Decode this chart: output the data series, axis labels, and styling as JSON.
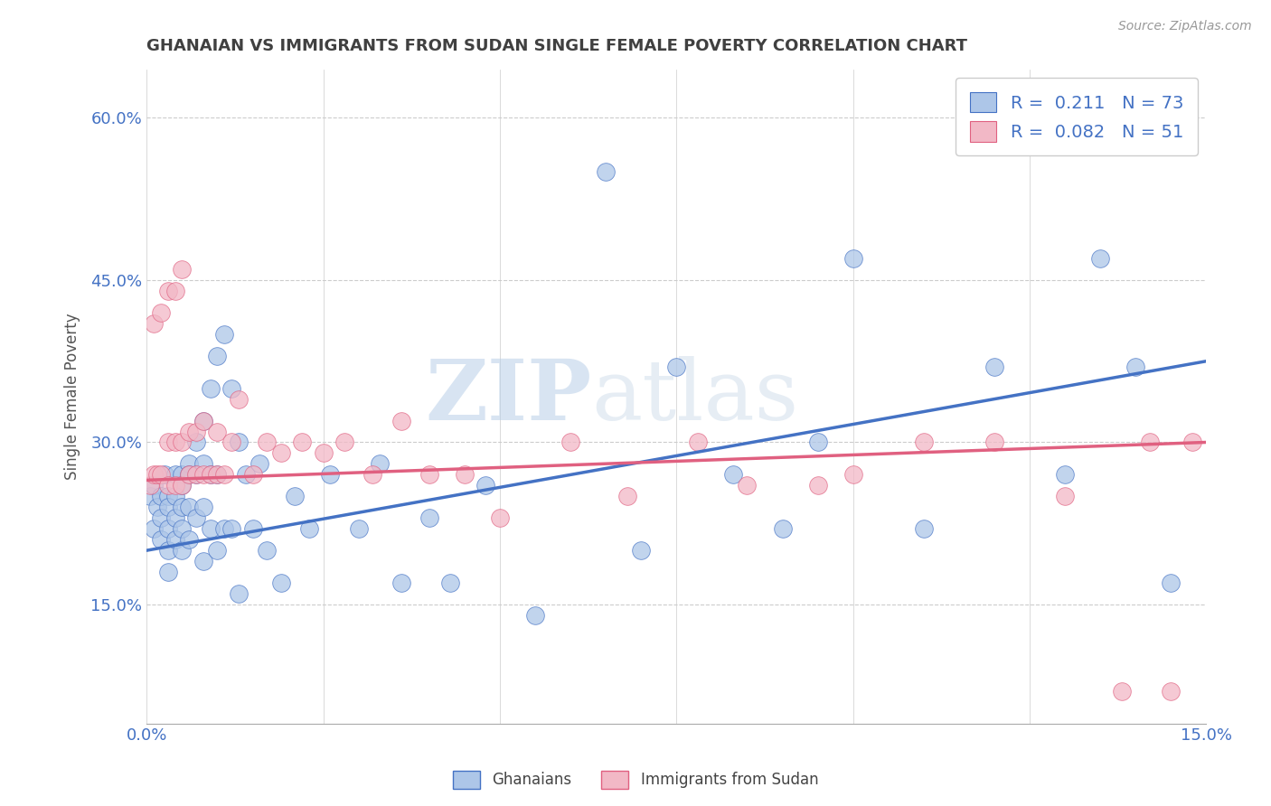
{
  "title": "GHANAIAN VS IMMIGRANTS FROM SUDAN SINGLE FEMALE POVERTY CORRELATION CHART",
  "source": "Source: ZipAtlas.com",
  "ylabel": "Single Female Poverty",
  "xlim": [
    0.0,
    0.15
  ],
  "ylim": [
    0.04,
    0.645
  ],
  "xticks": [
    0.0,
    0.025,
    0.05,
    0.075,
    0.1,
    0.125,
    0.15
  ],
  "xtick_labels": [
    "0.0%",
    "",
    "",
    "",
    "",
    "",
    "15.0%"
  ],
  "yticks": [
    0.15,
    0.3,
    0.45,
    0.6
  ],
  "ytick_labels": [
    "15.0%",
    "30.0%",
    "45.0%",
    "60.0%"
  ],
  "blue_color": "#adc6e8",
  "pink_color": "#f2b8c6",
  "blue_line_color": "#4472c4",
  "pink_line_color": "#e06080",
  "legend_R1": "0.211",
  "legend_N1": "73",
  "legend_R2": "0.082",
  "legend_N2": "51",
  "watermark_zip": "ZIP",
  "watermark_atlas": "atlas",
  "background_color": "#ffffff",
  "grid_color": "#cccccc",
  "title_color": "#404040",
  "axis_label_color": "#4472c4",
  "blue_scatter_x": [
    0.0005,
    0.001,
    0.001,
    0.0015,
    0.002,
    0.002,
    0.002,
    0.0025,
    0.003,
    0.003,
    0.003,
    0.003,
    0.003,
    0.004,
    0.004,
    0.004,
    0.004,
    0.005,
    0.005,
    0.005,
    0.005,
    0.005,
    0.006,
    0.006,
    0.006,
    0.006,
    0.007,
    0.007,
    0.007,
    0.008,
    0.008,
    0.008,
    0.008,
    0.009,
    0.009,
    0.009,
    0.01,
    0.01,
    0.01,
    0.011,
    0.011,
    0.012,
    0.012,
    0.013,
    0.013,
    0.014,
    0.015,
    0.016,
    0.017,
    0.019,
    0.021,
    0.023,
    0.026,
    0.03,
    0.033,
    0.036,
    0.04,
    0.043,
    0.048,
    0.055,
    0.065,
    0.07,
    0.075,
    0.083,
    0.09,
    0.095,
    0.1,
    0.11,
    0.12,
    0.13,
    0.135,
    0.14,
    0.145
  ],
  "blue_scatter_y": [
    0.25,
    0.26,
    0.22,
    0.24,
    0.25,
    0.23,
    0.21,
    0.27,
    0.25,
    0.24,
    0.22,
    0.2,
    0.18,
    0.27,
    0.25,
    0.23,
    0.21,
    0.27,
    0.26,
    0.24,
    0.22,
    0.2,
    0.28,
    0.27,
    0.24,
    0.21,
    0.3,
    0.27,
    0.23,
    0.32,
    0.28,
    0.24,
    0.19,
    0.35,
    0.27,
    0.22,
    0.38,
    0.27,
    0.2,
    0.4,
    0.22,
    0.35,
    0.22,
    0.3,
    0.16,
    0.27,
    0.22,
    0.28,
    0.2,
    0.17,
    0.25,
    0.22,
    0.27,
    0.22,
    0.28,
    0.17,
    0.23,
    0.17,
    0.26,
    0.14,
    0.55,
    0.2,
    0.37,
    0.27,
    0.22,
    0.3,
    0.47,
    0.22,
    0.37,
    0.27,
    0.47,
    0.37,
    0.17
  ],
  "pink_scatter_x": [
    0.0005,
    0.001,
    0.001,
    0.0015,
    0.002,
    0.002,
    0.003,
    0.003,
    0.003,
    0.004,
    0.004,
    0.004,
    0.005,
    0.005,
    0.005,
    0.006,
    0.006,
    0.007,
    0.007,
    0.008,
    0.008,
    0.009,
    0.01,
    0.01,
    0.011,
    0.012,
    0.013,
    0.015,
    0.017,
    0.019,
    0.022,
    0.025,
    0.028,
    0.032,
    0.036,
    0.04,
    0.045,
    0.05,
    0.06,
    0.068,
    0.078,
    0.085,
    0.095,
    0.1,
    0.11,
    0.12,
    0.13,
    0.138,
    0.142,
    0.145,
    0.148
  ],
  "pink_scatter_y": [
    0.26,
    0.41,
    0.27,
    0.27,
    0.42,
    0.27,
    0.44,
    0.3,
    0.26,
    0.44,
    0.3,
    0.26,
    0.46,
    0.3,
    0.26,
    0.31,
    0.27,
    0.31,
    0.27,
    0.32,
    0.27,
    0.27,
    0.31,
    0.27,
    0.27,
    0.3,
    0.34,
    0.27,
    0.3,
    0.29,
    0.3,
    0.29,
    0.3,
    0.27,
    0.32,
    0.27,
    0.27,
    0.23,
    0.3,
    0.25,
    0.3,
    0.26,
    0.26,
    0.27,
    0.3,
    0.3,
    0.25,
    0.07,
    0.3,
    0.07,
    0.3
  ],
  "blue_trend_x": [
    0.0,
    0.15
  ],
  "blue_trend_y": [
    0.2,
    0.375
  ],
  "pink_trend_x": [
    0.0,
    0.15
  ],
  "pink_trend_y": [
    0.265,
    0.3
  ]
}
